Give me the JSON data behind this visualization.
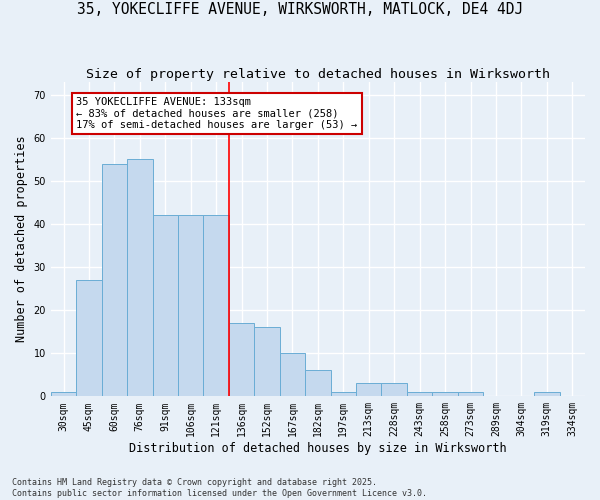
{
  "title_line1": "35, YOKECLIFFE AVENUE, WIRKSWORTH, MATLOCK, DE4 4DJ",
  "title_line2": "Size of property relative to detached houses in Wirksworth",
  "xlabel": "Distribution of detached houses by size in Wirksworth",
  "ylabel": "Number of detached properties",
  "bar_labels": [
    "30sqm",
    "45sqm",
    "60sqm",
    "76sqm",
    "91sqm",
    "106sqm",
    "121sqm",
    "136sqm",
    "152sqm",
    "167sqm",
    "182sqm",
    "197sqm",
    "213sqm",
    "228sqm",
    "243sqm",
    "258sqm",
    "273sqm",
    "289sqm",
    "304sqm",
    "319sqm",
    "334sqm"
  ],
  "bar_values": [
    1,
    27,
    54,
    55,
    42,
    42,
    42,
    17,
    16,
    10,
    6,
    1,
    3,
    3,
    1,
    1,
    1,
    0,
    0,
    1,
    0
  ],
  "bar_color": "#c5d9ee",
  "bar_edge_color": "#6aadd5",
  "reference_line_index": 7,
  "annotation_text": "35 YOKECLIFFE AVENUE: 133sqm\n← 83% of detached houses are smaller (258)\n17% of semi-detached houses are larger (53) →",
  "annotation_box_color": "#ffffff",
  "annotation_box_edge_color": "#cc0000",
  "ylim": [
    0,
    73
  ],
  "yticks": [
    0,
    10,
    20,
    30,
    40,
    50,
    60,
    70
  ],
  "background_color": "#e8f0f8",
  "grid_color": "#ffffff",
  "footer_text": "Contains HM Land Registry data © Crown copyright and database right 2025.\nContains public sector information licensed under the Open Government Licence v3.0.",
  "title_fontsize": 10.5,
  "subtitle_fontsize": 9.5,
  "axis_label_fontsize": 8.5,
  "tick_fontsize": 7,
  "annotation_fontsize": 7.5,
  "footer_fontsize": 6.0
}
